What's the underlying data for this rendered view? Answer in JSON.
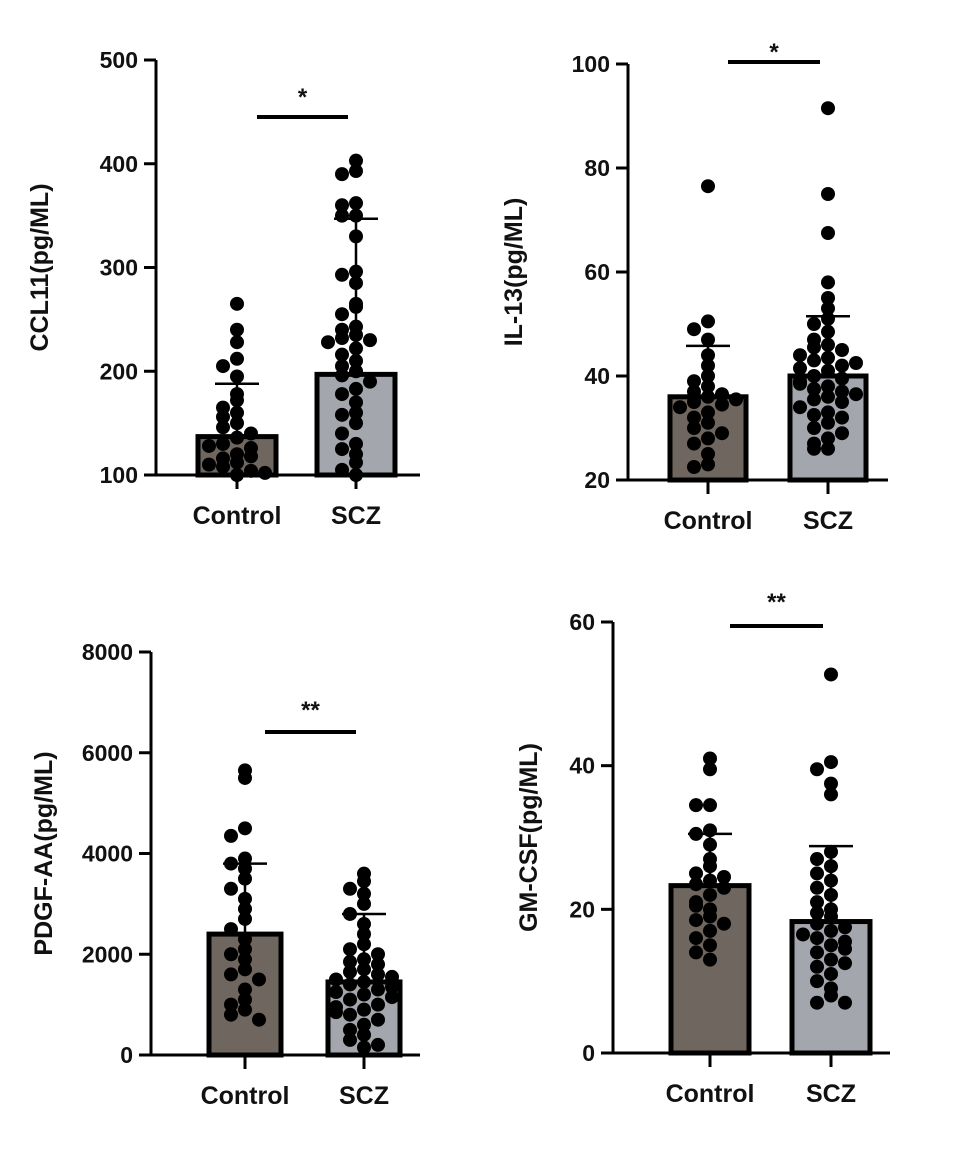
{
  "chart_data": [
    {
      "type": "bar",
      "ylabel": "CCL11(pg/ML)",
      "categories": [
        "Control",
        "SCZ"
      ],
      "ylim": [
        100,
        500
      ],
      "yticks": [
        100,
        200,
        300,
        400,
        500
      ],
      "means": [
        137,
        197
      ],
      "sd_upper": [
        188,
        347
      ],
      "significance": "*",
      "points": [
        [
          265,
          240,
          228,
          212,
          205,
          195,
          178,
          172,
          165,
          160,
          156,
          150,
          146,
          140,
          136,
          130,
          126,
          120,
          116,
          112,
          108,
          104,
          100,
          118,
          128,
          110,
          102
        ],
        [
          403,
          393,
          390,
          362,
          360,
          350,
          350,
          330,
          296,
          293,
          285,
          265,
          262,
          255,
          243,
          240,
          235,
          232,
          230,
          228,
          222,
          216,
          210,
          205,
          200,
          196,
          190,
          183,
          178,
          170,
          160,
          150,
          140,
          130,
          120,
          112,
          105,
          100,
          158,
          125
        ]
      ],
      "bar_colors": [
        "#6f675f",
        "#a4a6ae"
      ],
      "grid": false
    },
    {
      "type": "bar",
      "ylabel": "IL-13(pg/ML)",
      "categories": [
        "Control",
        "SCZ"
      ],
      "ylim": [
        20,
        100
      ],
      "yticks": [
        20,
        40,
        60,
        80,
        100
      ],
      "means": [
        36,
        40
      ],
      "sd_upper": [
        45.8,
        51.5
      ],
      "significance": "*",
      "points": [
        [
          76.5,
          50.5,
          49,
          47,
          44,
          42,
          40,
          39,
          38,
          37,
          36.5,
          36,
          35,
          34.5,
          34,
          33,
          32,
          31,
          30,
          29,
          28,
          27,
          25,
          23,
          22.5,
          35.5
        ],
        [
          91.5,
          75,
          67.5,
          58,
          55,
          53,
          51,
          50,
          48.5,
          47,
          46,
          45.5,
          45,
          44,
          43.5,
          43,
          42,
          41.5,
          41,
          40,
          39.5,
          39,
          38,
          37.5,
          37,
          36,
          35.5,
          35,
          34,
          33,
          32.5,
          32,
          31,
          30,
          29,
          28,
          27,
          26,
          26,
          42.5,
          38.5,
          36.5
        ]
      ],
      "bar_colors": [
        "#6f675f",
        "#a4a6ae"
      ],
      "grid": false
    },
    {
      "type": "bar",
      "ylabel": "PDGF-AA(pg/ML)",
      "categories": [
        "Control",
        "SCZ"
      ],
      "ylim": [
        0,
        8000
      ],
      "yticks": [
        0,
        2000,
        4000,
        6000,
        8000
      ],
      "means": [
        2400,
        1450
      ],
      "sd_upper": [
        3800,
        2800
      ],
      "significance": "**",
      "points": [
        [
          5650,
          5500,
          4500,
          4350,
          3900,
          3800,
          3700,
          3500,
          3300,
          3100,
          2900,
          2700,
          2500,
          2300,
          2100,
          2000,
          1900,
          1700,
          1600,
          1500,
          1300,
          1100,
          1000,
          900,
          800,
          700
        ],
        [
          3600,
          3450,
          3300,
          3200,
          3000,
          2800,
          2600,
          2400,
          2200,
          2100,
          2000,
          1900,
          1850,
          1800,
          1700,
          1650,
          1600,
          1500,
          1450,
          1400,
          1300,
          1250,
          1200,
          1100,
          1000,
          950,
          900,
          800,
          700,
          600,
          500,
          400,
          300,
          200,
          150,
          1550,
          1350,
          1150,
          850
        ]
      ],
      "bar_colors": [
        "#6f675f",
        "#a4a6ae"
      ],
      "grid": false
    },
    {
      "type": "bar",
      "ylabel": "GM-CSF(pg/ML)",
      "categories": [
        "Control",
        "SCZ"
      ],
      "ylim": [
        0,
        60
      ],
      "yticks": [
        0,
        20,
        40,
        60
      ],
      "means": [
        23.3,
        18.3
      ],
      "sd_upper": [
        30.5,
        28.8
      ],
      "significance": "**",
      "points": [
        [
          41,
          39.5,
          34.5,
          34.5,
          31,
          30.5,
          29,
          27,
          26,
          25,
          24,
          23.5,
          23,
          22,
          21,
          20,
          19,
          18.5,
          18,
          17,
          16,
          15,
          14,
          13,
          20.5,
          24.5
        ],
        [
          52.7,
          40.5,
          39.5,
          37.5,
          36,
          28,
          27,
          26,
          25,
          24,
          23,
          22,
          21,
          20,
          19.5,
          19,
          18,
          17.5,
          17,
          16,
          15.5,
          15,
          14,
          13,
          12,
          11,
          10,
          9,
          8,
          7,
          7,
          16.5,
          14.5,
          12.5
        ]
      ],
      "bar_colors": [
        "#6f675f",
        "#a4a6ae"
      ],
      "grid": false
    }
  ]
}
